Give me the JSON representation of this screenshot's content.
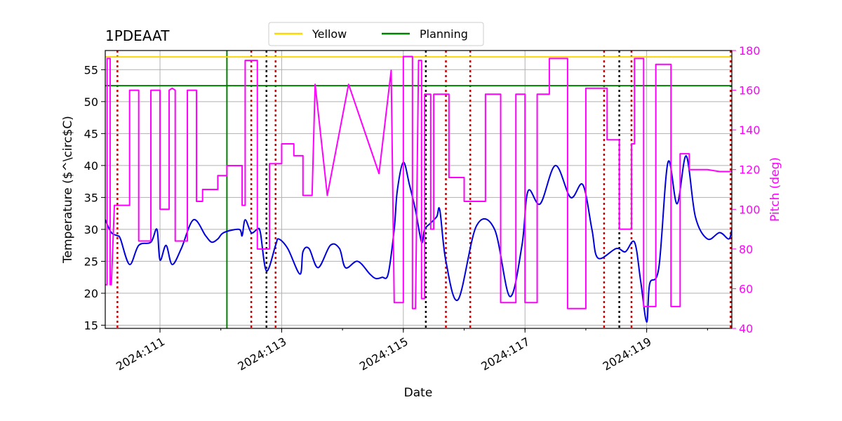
{
  "chart_data": {
    "type": "line",
    "title": "1PDEAAT",
    "xlabel": "Date",
    "ylabel_left": "Temperature ($^\\circ$C)",
    "ylabel_right": "Pitch (deg)",
    "xlim": [
      110.1,
      120.4
    ],
    "ylim_left": [
      14.5,
      58
    ],
    "ylim_right": [
      40,
      180
    ],
    "x_ticks": [
      {
        "value": 111,
        "label": "2024:111"
      },
      {
        "value": 113,
        "label": "2024:113"
      },
      {
        "value": 115,
        "label": "2024:115"
      },
      {
        "value": 117,
        "label": "2024:117"
      },
      {
        "value": 119,
        "label": "2024:119"
      }
    ],
    "y_ticks_left": [
      "15",
      "20",
      "25",
      "30",
      "35",
      "40",
      "45",
      "50",
      "55"
    ],
    "y_ticks_right": [
      "40",
      "60",
      "80",
      "100",
      "120",
      "140",
      "160",
      "180"
    ],
    "grid": true,
    "legend": {
      "placement": "top-center",
      "entries": [
        {
          "label": "Yellow",
          "color": "#ffd700"
        },
        {
          "label": "Planning",
          "color": "#008000"
        }
      ]
    },
    "hlines": [
      {
        "name": "Yellow",
        "y": 57,
        "color": "#ffd700"
      },
      {
        "name": "Planning",
        "y": 52.5,
        "color": "#008000"
      }
    ],
    "vlines": [
      {
        "x": 112.1,
        "color": "#008000",
        "style": "solid"
      },
      {
        "x": 110.3,
        "color": "#cc0000",
        "style": "dotted"
      },
      {
        "x": 112.5,
        "color": "#cc0000",
        "style": "dotted"
      },
      {
        "x": 112.9,
        "color": "#cc0000",
        "style": "dotted"
      },
      {
        "x": 115.7,
        "color": "#cc0000",
        "style": "dotted"
      },
      {
        "x": 116.1,
        "color": "#cc0000",
        "style": "dotted"
      },
      {
        "x": 118.3,
        "color": "#cc0000",
        "style": "dotted"
      },
      {
        "x": 118.75,
        "color": "#cc0000",
        "style": "dotted"
      },
      {
        "x": 120.38,
        "color": "#cc0000",
        "style": "dotted"
      },
      {
        "x": 112.75,
        "color": "#000000",
        "style": "dotted"
      },
      {
        "x": 115.37,
        "color": "#000000",
        "style": "dotted"
      },
      {
        "x": 118.55,
        "color": "#000000",
        "style": "dotted"
      }
    ],
    "series": [
      {
        "name": "Temperature",
        "axis": "left",
        "color": "#0000dd",
        "smooth": true,
        "x": [
          110.1,
          110.2,
          110.3,
          110.35,
          110.5,
          110.65,
          110.85,
          110.95,
          111.0,
          111.1,
          111.2,
          111.35,
          111.55,
          111.75,
          111.85,
          111.95,
          112.05,
          112.3,
          112.35,
          112.4,
          112.5,
          112.6,
          112.65,
          112.75,
          112.9,
          112.95,
          113.1,
          113.3,
          113.35,
          113.45,
          113.6,
          113.8,
          113.95,
          114.05,
          114.25,
          114.45,
          114.55,
          114.65,
          114.75,
          114.85,
          114.9,
          115.0,
          115.1,
          115.2,
          115.3,
          115.35,
          115.45,
          115.55,
          115.6,
          115.7,
          115.9,
          116.2,
          116.5,
          116.75,
          116.95,
          117.05,
          117.25,
          117.5,
          117.75,
          117.95,
          118.1,
          118.2,
          118.5,
          118.65,
          118.8,
          118.9,
          119.0,
          119.05,
          119.2,
          119.35,
          119.5,
          119.65,
          119.8,
          120.0,
          120.2,
          120.35,
          120.4
        ],
        "y": [
          31.5,
          29.5,
          29.0,
          28.5,
          24.5,
          27.5,
          28.0,
          30.0,
          25.2,
          27.5,
          24.5,
          27.0,
          31.5,
          29.0,
          28.0,
          28.5,
          29.5,
          30.0,
          29.0,
          31.5,
          29.5,
          30.0,
          29.5,
          23.5,
          27.5,
          28.5,
          27.0,
          23.0,
          26.5,
          27.0,
          24.0,
          27.5,
          27.0,
          24.0,
          25.0,
          23.0,
          22.3,
          22.5,
          23.0,
          30.0,
          36.0,
          40.5,
          37.0,
          33.0,
          28.0,
          30.0,
          31.0,
          32.0,
          33.0,
          25.0,
          19.0,
          30.5,
          30.0,
          19.5,
          27.5,
          36.0,
          34.0,
          40.0,
          35.0,
          37.0,
          30.0,
          25.5,
          27.0,
          26.5,
          28.0,
          22.0,
          15.5,
          21.5,
          24.0,
          40.5,
          34.0,
          41.5,
          32.0,
          28.5,
          29.5,
          28.5,
          30.0
        ]
      },
      {
        "name": "Pitch",
        "axis": "right",
        "color": "#ff00ff",
        "smooth": false,
        "x": [
          110.1,
          110.13,
          110.13,
          110.18,
          110.18,
          110.2,
          110.25,
          110.25,
          110.3,
          110.3,
          110.5,
          110.5,
          110.65,
          110.65,
          110.85,
          110.85,
          111.0,
          111.0,
          111.15,
          111.15,
          111.2,
          111.25,
          111.25,
          111.45,
          111.45,
          111.6,
          111.6,
          111.7,
          111.7,
          111.95,
          111.95,
          112.1,
          112.1,
          112.35,
          112.35,
          112.4,
          112.4,
          112.6,
          112.6,
          112.8,
          112.8,
          113.0,
          113.0,
          113.2,
          113.2,
          113.35,
          113.35,
          113.5,
          113.55,
          113.55,
          113.75,
          113.75,
          114.1,
          114.1,
          114.6,
          114.6,
          114.8,
          114.8,
          114.85,
          115.0,
          115.0,
          115.15,
          115.15,
          115.2,
          115.25,
          115.3,
          115.3,
          115.35,
          115.35,
          115.45,
          115.45,
          115.5,
          115.5,
          115.75,
          115.75,
          116.0,
          116.0,
          116.35,
          116.35,
          116.6,
          116.6,
          116.85,
          116.85,
          117.0,
          117.0,
          117.2,
          117.2,
          117.4,
          117.4,
          117.7,
          117.7,
          118.0,
          118.0,
          118.35,
          118.35,
          118.55,
          118.55,
          118.75,
          118.75,
          118.8,
          118.8,
          118.95,
          118.95,
          119.15,
          119.15,
          119.4,
          119.4,
          119.55,
          119.55,
          119.7,
          119.7,
          119.8,
          119.8,
          120.0,
          120.0,
          120.2,
          120.2,
          120.35,
          120.4
        ],
        "y": [
          62,
          62,
          176,
          176,
          62,
          62,
          102,
          102,
          102,
          102,
          102,
          160,
          160,
          84,
          84,
          160,
          160,
          100,
          100,
          160,
          161,
          160,
          84,
          84,
          160,
          160,
          104,
          104,
          110,
          110,
          117,
          117,
          122,
          122,
          102,
          102,
          175,
          175,
          80,
          80,
          123,
          123,
          133,
          133,
          127,
          127,
          107,
          107,
          163,
          163,
          107,
          107,
          163,
          163,
          118,
          118,
          170,
          170,
          53,
          53,
          177,
          177,
          50,
          50,
          175,
          175,
          55,
          55,
          158,
          158,
          90,
          90,
          158,
          158,
          116,
          116,
          104,
          104,
          158,
          158,
          53,
          53,
          158,
          158,
          53,
          53,
          158,
          158,
          176,
          176,
          50,
          50,
          161,
          161,
          135,
          135,
          90,
          90,
          133,
          133,
          176,
          176,
          51,
          51,
          173,
          173,
          51,
          51,
          128,
          128,
          120,
          120,
          120,
          120,
          120,
          119,
          119,
          119,
          119
        ]
      }
    ]
  }
}
